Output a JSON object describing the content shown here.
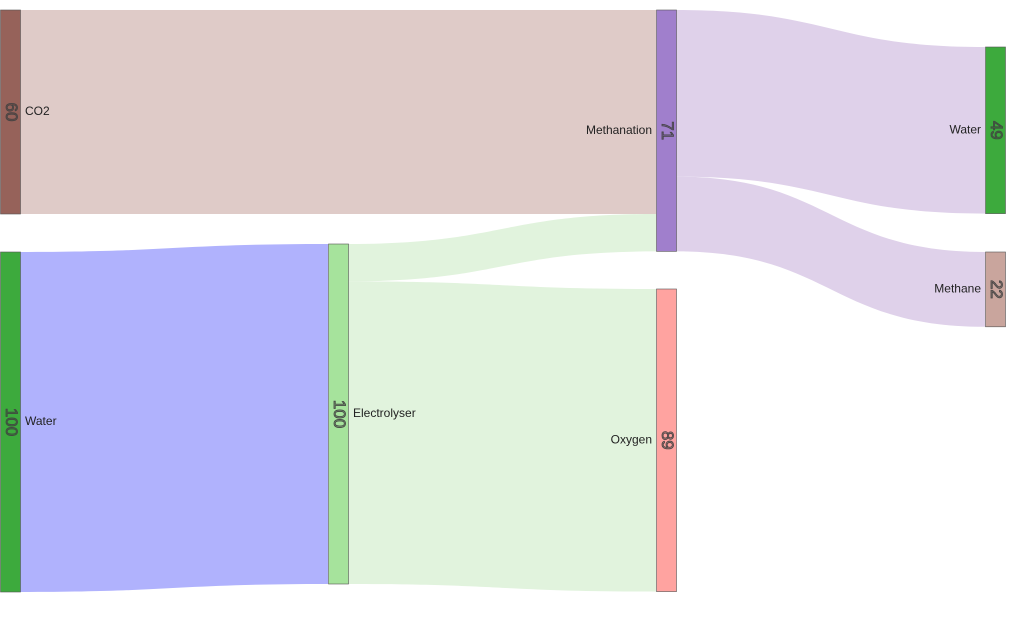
{
  "chart_data": {
    "type": "sankey",
    "nodes": [
      {
        "label": "CO2",
        "value": 60,
        "color": "#96625a"
      },
      {
        "label": "Water",
        "value": 100,
        "color": "#3daa3d"
      },
      {
        "label": "Electrolyser",
        "value": 100,
        "color": "#a6e39c"
      },
      {
        "label": "Methanation",
        "value": 71,
        "color": "#a07fcc"
      },
      {
        "label": "Oxygen",
        "value": 89,
        "color": "#ffa3a0"
      },
      {
        "label": "Water",
        "value": 49,
        "color": "#3daa3d"
      },
      {
        "label": "Methane",
        "value": 22,
        "color": "#c9a59d"
      }
    ],
    "links": [
      {
        "source": 0,
        "target": 3,
        "value": 60,
        "color": "#dfcbc8"
      },
      {
        "source": 1,
        "target": 2,
        "value": 100,
        "color": "#b0b2fd"
      },
      {
        "source": 2,
        "target": 3,
        "value": 11,
        "color": "#e1f3dd"
      },
      {
        "source": 2,
        "target": 4,
        "value": 89,
        "color": "#e1f3dd"
      },
      {
        "source": 3,
        "target": 5,
        "value": 49,
        "color": "#dfd1ea"
      },
      {
        "source": 3,
        "target": 6,
        "value": 22,
        "color": "#dfd1ea"
      }
    ]
  }
}
